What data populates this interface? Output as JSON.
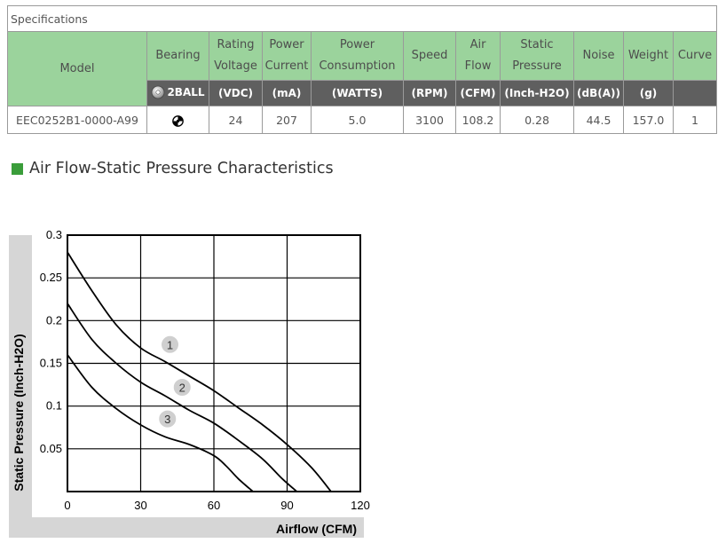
{
  "spec_table": {
    "caption": "Specifications",
    "header_top": [
      "Model",
      "Bearing",
      "Rating\nVoltage",
      "Power\nCurrent",
      "Power\nConsumption",
      "Speed",
      "Air\nFlow",
      "Static\nPressure",
      "Noise",
      "Weight",
      "Curve"
    ],
    "units": [
      "2BALL",
      "(VDC)",
      "(mA)",
      "(WATTS)",
      "(RPM)",
      "(CFM)",
      "(Inch-H2O)",
      "(dB(A))",
      "(g)",
      ""
    ],
    "row": [
      "EEC0252B1-0000-A99",
      "ball-bearing-icon",
      "24",
      "207",
      "5.0",
      "3100",
      "108.2",
      "0.28",
      "44.5",
      "157.0",
      "1"
    ]
  },
  "section_title": "Air Flow-Static Pressure Characteristics",
  "chart_data": {
    "type": "line",
    "xlabel": "Airflow (CFM)",
    "ylabel": "Static Pressure (Inch-H2O)",
    "xlim": [
      0,
      120
    ],
    "ylim": [
      0,
      0.3
    ],
    "x_ticks": [
      "0",
      "30",
      "60",
      "90",
      "120"
    ],
    "y_ticks": [
      "0.05",
      "0.1",
      "0.15",
      "0.2",
      "0.25",
      "0.3"
    ],
    "grid": true,
    "colors": {
      "frame_fill": "#d6d6d6",
      "line": "#000000",
      "label_marker": "#cfcfcf"
    },
    "series": [
      {
        "name": "1",
        "label_at": [
          42,
          0.172
        ],
        "points": [
          [
            0,
            0.28
          ],
          [
            10,
            0.235
          ],
          [
            20,
            0.195
          ],
          [
            30,
            0.168
          ],
          [
            40,
            0.152
          ],
          [
            50,
            0.135
          ],
          [
            60,
            0.118
          ],
          [
            70,
            0.098
          ],
          [
            80,
            0.078
          ],
          [
            90,
            0.055
          ],
          [
            100,
            0.028
          ],
          [
            108,
            0.0
          ]
        ]
      },
      {
        "name": "2",
        "label_at": [
          47,
          0.122
        ],
        "points": [
          [
            0,
            0.22
          ],
          [
            10,
            0.178
          ],
          [
            20,
            0.15
          ],
          [
            30,
            0.128
          ],
          [
            40,
            0.112
          ],
          [
            50,
            0.095
          ],
          [
            60,
            0.08
          ],
          [
            70,
            0.06
          ],
          [
            80,
            0.038
          ],
          [
            88,
            0.015
          ],
          [
            94,
            0.0
          ]
        ]
      },
      {
        "name": "3",
        "label_at": [
          41,
          0.085
        ],
        "points": [
          [
            0,
            0.16
          ],
          [
            10,
            0.122
          ],
          [
            20,
            0.097
          ],
          [
            30,
            0.078
          ],
          [
            40,
            0.064
          ],
          [
            50,
            0.055
          ],
          [
            60,
            0.042
          ],
          [
            65,
            0.03
          ],
          [
            70,
            0.015
          ],
          [
            76,
            0.0
          ]
        ]
      }
    ]
  }
}
